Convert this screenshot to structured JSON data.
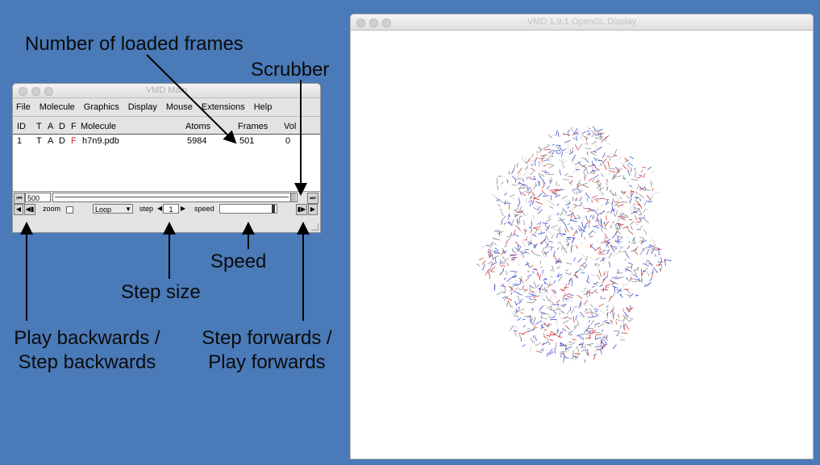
{
  "annotations": {
    "frames": "Number of loaded frames",
    "scrubber": "Scrubber",
    "speed": "Speed",
    "step_size": "Step size",
    "play_back_line1": "Play backwards /",
    "play_back_line2": "Step backwards",
    "play_fwd_line1": "Step forwards /",
    "play_fwd_line2": "Play forwards"
  },
  "main_window": {
    "title": "VMD Main",
    "menu": [
      "File",
      "Molecule",
      "Graphics",
      "Display",
      "Mouse",
      "Extensions",
      "Help"
    ],
    "columns": {
      "id": "ID",
      "t": "T",
      "a": "A",
      "d": "D",
      "f": "F",
      "molecule": "Molecule",
      "atoms": "Atoms",
      "frames": "Frames",
      "vol": "Vol"
    },
    "molecule_row": {
      "id": "1",
      "t": "T",
      "a": "A",
      "d": "D",
      "f": "F",
      "molecule": "h7n9.pdb",
      "atoms": "5984",
      "frames": "501",
      "vol": "0"
    },
    "current_frame": "500",
    "zoom_label": "zoom",
    "loop_option": "Loop",
    "step_label": "step",
    "step_value": "1",
    "speed_label": "speed"
  },
  "gl_window": {
    "title": "VMD 1.9.1 OpenGL Display"
  },
  "colors": {
    "background": "#4a7ab8",
    "atom_carbon": "#7f7f7f",
    "atom_nitrogen": "#2a3fd0",
    "atom_oxygen": "#d02020",
    "atom_hydrogen": "#cccccc"
  }
}
